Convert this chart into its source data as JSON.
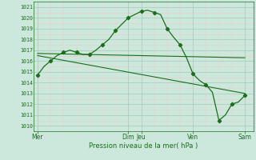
{
  "title": "",
  "xlabel": "Pression niveau de la mer( hPa )",
  "ylim": [
    1009.5,
    1021.5
  ],
  "xlim": [
    -2,
    100
  ],
  "bg_color": "#cce8dc",
  "grid_color_major": "#a8c8b8",
  "grid_color_minor": "#f0c8c8",
  "line_color": "#1a6e1a",
  "day_ticks_x": [
    0,
    42,
    48,
    72,
    96
  ],
  "day_labels": [
    "Mer",
    "Dim",
    "Jeu",
    "Ven",
    "Sam"
  ],
  "yticks": [
    1010,
    1011,
    1012,
    1013,
    1014,
    1015,
    1016,
    1017,
    1018,
    1019,
    1020,
    1021
  ],
  "minor_yticks": [
    1010.5,
    1011.5,
    1012.5,
    1013.5,
    1014.5,
    1015.5,
    1016.5,
    1017.5,
    1018.5,
    1019.5,
    1020.5
  ],
  "vlines_x": [
    0,
    42,
    48,
    72,
    96
  ],
  "forecast_x": [
    0,
    3,
    6,
    9,
    12,
    15,
    18,
    21,
    24,
    27,
    30,
    33,
    36,
    39,
    42,
    45,
    48,
    51,
    54,
    57,
    60,
    63,
    66,
    69,
    72,
    75,
    78,
    81,
    84,
    87,
    90,
    93,
    96
  ],
  "forecast_y": [
    1014.7,
    1015.5,
    1016.0,
    1016.5,
    1016.8,
    1017.0,
    1016.8,
    1016.6,
    1016.6,
    1017.0,
    1017.5,
    1018.0,
    1018.8,
    1019.4,
    1020.0,
    1020.3,
    1020.6,
    1020.7,
    1020.5,
    1020.3,
    1019.0,
    1018.2,
    1017.5,
    1016.3,
    1014.8,
    1014.2,
    1013.8,
    1013.1,
    1010.5,
    1011.0,
    1012.0,
    1012.2,
    1012.8
  ],
  "trend1_x": [
    0,
    96
  ],
  "trend1_y": [
    1016.7,
    1016.3
  ],
  "trend2_x": [
    0,
    96
  ],
  "trend2_y": [
    1016.5,
    1013.0
  ],
  "marker_x": [
    0,
    6,
    12,
    18,
    24,
    30,
    36,
    42,
    48,
    54,
    60,
    66,
    72,
    78,
    84,
    90,
    96
  ],
  "marker_y": [
    1014.7,
    1016.0,
    1016.8,
    1016.8,
    1016.6,
    1017.5,
    1018.8,
    1020.0,
    1020.6,
    1020.5,
    1019.0,
    1017.5,
    1014.8,
    1013.8,
    1010.5,
    1012.0,
    1012.8
  ]
}
